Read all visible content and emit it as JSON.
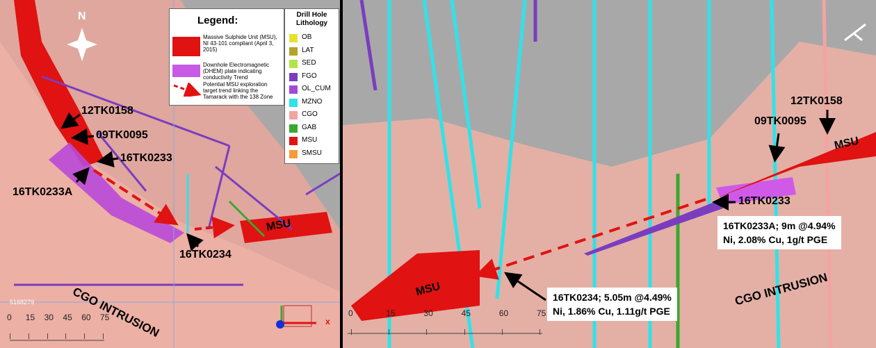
{
  "left_panel": {
    "north": "N",
    "legend": {
      "title": "Legend:",
      "items": [
        "Massive Sulphide Unit (MSU), NI 43-101 compliant (April 3, 2015)",
        "Downhole Electromagnetic (DHEM) plate indicating conductivity Trend",
        "Potential MSU exploration target trend linking the Tamarack with the 138 Zone"
      ]
    },
    "lithology": {
      "title": "Drill Hole Lithology",
      "items": [
        {
          "name": "OB",
          "color": "#e6e034"
        },
        {
          "name": "LAT",
          "color": "#b3a429"
        },
        {
          "name": "SED",
          "color": "#b4e448"
        },
        {
          "name": "FGO",
          "color": "#7a3dc0"
        },
        {
          "name": "OL_CUM",
          "color": "#a24ad8"
        },
        {
          "name": "MZNO",
          "color": "#30e2ea"
        },
        {
          "name": "CGO",
          "color": "#f4a3a3"
        },
        {
          "name": "GAB",
          "color": "#3aa72f"
        },
        {
          "name": "MSU",
          "color": "#e01212"
        },
        {
          "name": "SMSU",
          "color": "#f59b3b"
        }
      ]
    },
    "labels": {
      "hole_12TK0158": "12TK0158",
      "hole_09TK0095": "09TK0095",
      "hole_16TK0233": "16TK0233",
      "hole_16TK0233A": "16TK0233A",
      "hole_16TK0234": "16TK0234",
      "msu": "MSU",
      "intrusion": "CGO INTRUSION",
      "northing": "5168279",
      "axis_x": "x"
    },
    "scale": [
      0,
      15,
      30,
      45,
      60,
      75
    ]
  },
  "right_panel": {
    "labels": {
      "hole_12TK0158": "12TK0158",
      "hole_09TK0095": "09TK0095",
      "msu_upper": "MSU",
      "hole_16TK0233": "16TK0233",
      "msu_lower": "MSU",
      "intrusion": "CGO INTRUSION"
    },
    "callout_16TK0233A": [
      "16TK0233A; 9m @4.94%",
      "Ni,  2.08% Cu, 1g/t PGE"
    ],
    "callout_16TK0234": [
      "16TK0234; 5.05m @4.49%",
      "Ni,  1.86% Cu, 1.11g/t PGE"
    ],
    "scale": [
      0,
      15,
      30,
      45,
      60,
      75
    ]
  }
}
